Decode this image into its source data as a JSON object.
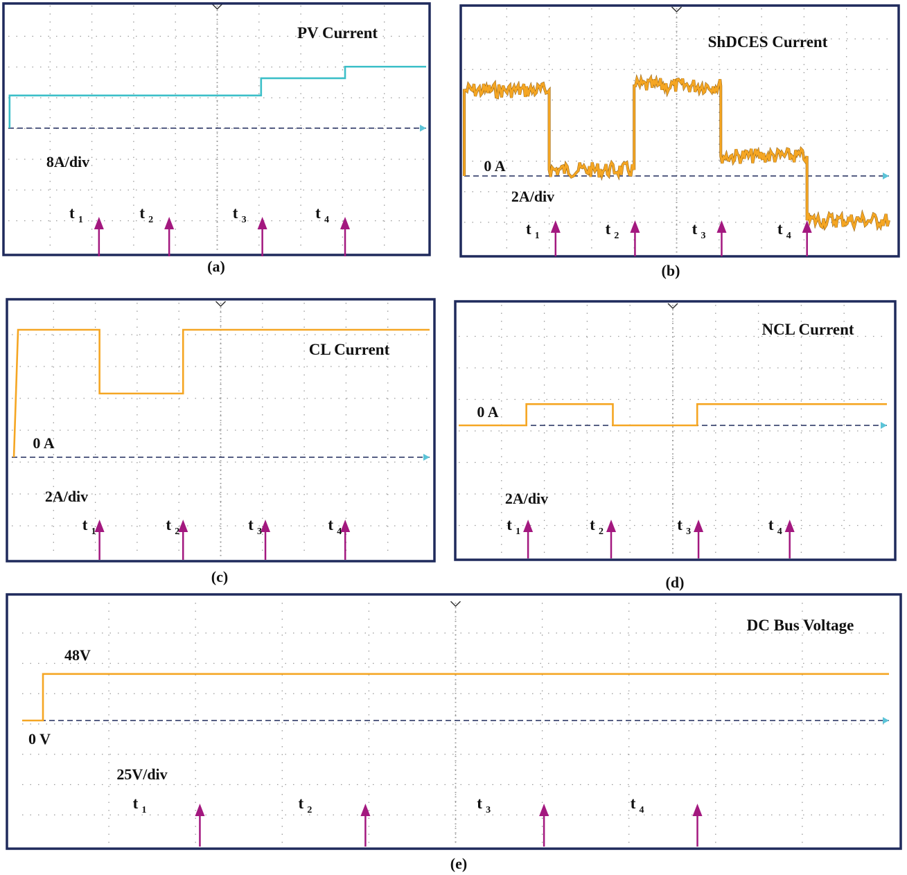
{
  "colors": {
    "frame": "#1f2a5c",
    "grid": "#9a9a9a",
    "zero_line": "#1f2a5c",
    "arrow": "#a3187f",
    "pv_trace": "#3cbfc8",
    "orange_trace": "#f5a623",
    "orange_edge": "#8a5a10"
  },
  "chart_data": [
    {
      "type": "line",
      "caption": "(a)",
      "title": "PV Current",
      "scale_label": "8A/div",
      "units_per_div": 8,
      "divisions": {
        "x": 10,
        "y": 8
      },
      "grid": true,
      "trace_color": "pv_trace",
      "noisy": false,
      "trace": [
        [
          0.03,
          0
        ],
        [
          0.03,
          8.5
        ],
        [
          6.05,
          8.5
        ],
        [
          6.05,
          13
        ],
        [
          8.06,
          13
        ],
        [
          8.06,
          16
        ],
        [
          10,
          16
        ]
      ],
      "markers": [
        {
          "t": "t",
          "sub": "1",
          "arrow_x": 2.17
        },
        {
          "t": "t",
          "sub": "2",
          "arrow_x": 3.85
        },
        {
          "t": "t",
          "sub": "3",
          "arrow_x": 6.08
        },
        {
          "t": "t",
          "sub": "4",
          "arrow_x": 8.06
        }
      ]
    },
    {
      "type": "line",
      "caption": "(b)",
      "title": "ShDCES Current",
      "zero_label": "0 A",
      "scale_label": "2A/div",
      "units_per_div": 2,
      "divisions": {
        "x": 10,
        "y": 8
      },
      "grid": true,
      "trace_color": "orange_trace",
      "noisy": true,
      "trace": [
        [
          0,
          0
        ],
        [
          0,
          5.6
        ],
        [
          2.0,
          5.6
        ],
        [
          2.0,
          0.4
        ],
        [
          4.0,
          0.4
        ],
        [
          4.0,
          5.9
        ],
        [
          6.04,
          5.9
        ],
        [
          6.04,
          1.3
        ],
        [
          8.07,
          1.3
        ],
        [
          8.07,
          -2.9
        ],
        [
          10,
          -2.9
        ]
      ],
      "markers": [
        {
          "t": "t",
          "sub": "1",
          "arrow_x": 2.15
        },
        {
          "t": "t",
          "sub": "2",
          "arrow_x": 4.02
        },
        {
          "t": "t",
          "sub": "3",
          "arrow_x": 6.06
        },
        {
          "t": "t",
          "sub": "4",
          "arrow_x": 8.07
        }
      ]
    },
    {
      "type": "line",
      "caption": "(c)",
      "title": "CL Current",
      "zero_label": "0 A",
      "scale_label": "2A/div",
      "units_per_div": 2,
      "divisions": {
        "x": 10,
        "y": 8
      },
      "grid": true,
      "trace_color": "orange_trace",
      "noisy": false,
      "trace": [
        [
          0.05,
          0
        ],
        [
          0.15,
          8
        ],
        [
          2.1,
          8
        ],
        [
          2.1,
          4
        ],
        [
          4.1,
          4
        ],
        [
          4.1,
          8
        ],
        [
          10,
          8
        ]
      ],
      "markers": [
        {
          "t": "t",
          "sub": "1",
          "arrow_x": 2.1
        },
        {
          "t": "t",
          "sub": "2",
          "arrow_x": 4.1
        },
        {
          "t": "t",
          "sub": "3",
          "arrow_x": 6.07
        },
        {
          "t": "t",
          "sub": "4",
          "arrow_x": 7.98
        }
      ]
    },
    {
      "type": "line",
      "caption": "(d)",
      "title": "NCL Current",
      "zero_label": "0 A",
      "scale_label": "2A/div",
      "units_per_div": 2,
      "divisions": {
        "x": 10,
        "y": 8
      },
      "grid": true,
      "trace_color": "orange_trace",
      "noisy": false,
      "trace": [
        [
          0,
          0
        ],
        [
          1.58,
          0
        ],
        [
          1.58,
          1.35
        ],
        [
          3.6,
          1.35
        ],
        [
          3.6,
          0
        ],
        [
          5.57,
          0
        ],
        [
          5.57,
          1.35
        ],
        [
          10,
          1.35
        ]
      ],
      "markers": [
        {
          "t": "t",
          "sub": "1",
          "arrow_x": 1.62
        },
        {
          "t": "t",
          "sub": "2",
          "arrow_x": 3.56
        },
        {
          "t": "t",
          "sub": "3",
          "arrow_x": 5.6
        },
        {
          "t": "t",
          "sub": "4",
          "arrow_x": 7.73
        }
      ]
    },
    {
      "type": "line",
      "caption": "(e)",
      "title": "DC Bus Voltage",
      "level_label": "48V",
      "zero_label": "0 V",
      "scale_label": "25V/div",
      "units_per_div": 25,
      "divisions": {
        "x": 10,
        "y": 8
      },
      "grid": true,
      "trace_color": "orange_trace",
      "noisy": false,
      "trace": [
        [
          0,
          0
        ],
        [
          0.24,
          0
        ],
        [
          0.24,
          48
        ],
        [
          10,
          48
        ]
      ],
      "markers": [
        {
          "t": "t",
          "sub": "1",
          "arrow_x": 2.05
        },
        {
          "t": "t",
          "sub": "2",
          "arrow_x": 3.96
        },
        {
          "t": "t",
          "sub": "3",
          "arrow_x": 6.02
        },
        {
          "t": "t",
          "sub": "4",
          "arrow_x": 7.79
        }
      ]
    }
  ]
}
